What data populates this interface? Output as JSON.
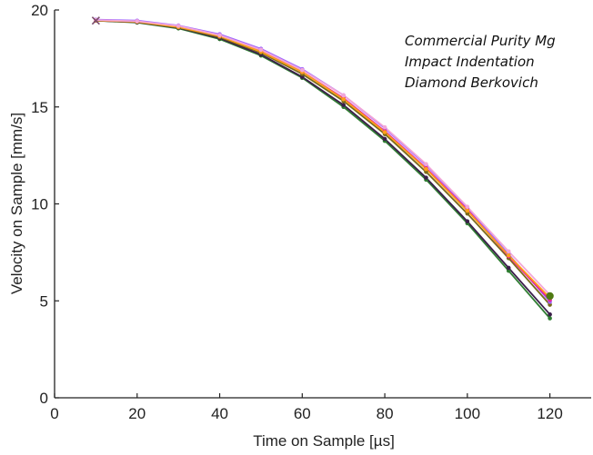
{
  "chart_data": {
    "type": "line",
    "xlabel": "Time on Sample [µs]",
    "ylabel": "Velocity on Sample [mm/s]",
    "xlim": [
      0,
      130
    ],
    "ylim": [
      0,
      20
    ],
    "x_ticks": [
      "0",
      "20",
      "40",
      "60",
      "80",
      "100",
      "120"
    ],
    "y_ticks": [
      "0",
      "5",
      "10",
      "15",
      "20"
    ],
    "grid": false,
    "annotations": [
      "Commercial Purity Mg",
      "Impact Indentation",
      "Diamond Berkovich"
    ],
    "x": [
      10,
      20,
      30,
      40,
      50,
      60,
      70,
      80,
      90,
      100,
      110,
      120
    ],
    "series": [
      {
        "color": "#2f7d32",
        "values": [
          19.45,
          19.35,
          19.05,
          18.5,
          17.65,
          16.5,
          15.0,
          13.25,
          11.25,
          9.0,
          6.55,
          4.1
        ]
      },
      {
        "color": "#3b1f4a",
        "values": [
          19.45,
          19.37,
          19.08,
          18.55,
          17.7,
          16.55,
          15.1,
          13.35,
          11.35,
          9.1,
          6.7,
          4.3
        ]
      },
      {
        "color": "#7a6a1a",
        "values": [
          19.45,
          19.38,
          19.1,
          18.6,
          17.8,
          16.7,
          15.3,
          13.6,
          11.65,
          9.5,
          7.2,
          4.8
        ]
      },
      {
        "color": "#a066ff",
        "values": [
          19.5,
          19.45,
          19.2,
          18.75,
          18.0,
          16.95,
          15.6,
          13.9,
          12.0,
          9.8,
          7.4,
          4.95
        ]
      },
      {
        "color": "#e6209c",
        "values": [
          19.47,
          19.4,
          19.15,
          18.65,
          17.9,
          16.8,
          15.45,
          13.75,
          11.85,
          9.7,
          7.3,
          5.05
        ]
      },
      {
        "color": "#ff9f1a",
        "values": [
          19.46,
          19.4,
          19.12,
          18.65,
          17.85,
          16.8,
          15.4,
          13.7,
          11.8,
          9.65,
          7.35,
          5.15
        ]
      },
      {
        "color": "#f2a7d8",
        "values": [
          19.48,
          19.42,
          19.18,
          18.7,
          17.95,
          16.9,
          15.6,
          13.95,
          12.05,
          9.85,
          7.55,
          5.3
        ]
      }
    ],
    "end_markers": [
      {
        "x": 120,
        "y": 5.25,
        "color": "#4f7a12"
      }
    ]
  }
}
